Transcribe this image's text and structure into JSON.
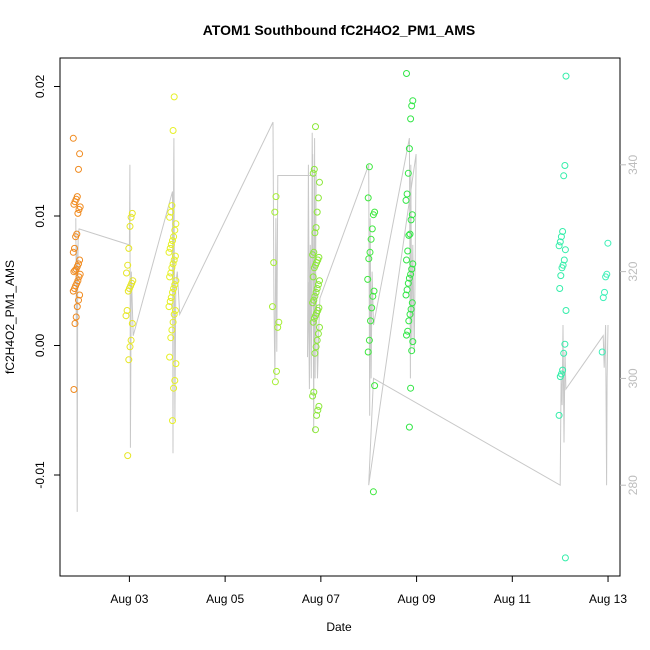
{
  "chart_data": {
    "type": "scatter",
    "title": "ATOM1 Southbound fC2H4O2_PM1_AMS",
    "xlabel": "Date",
    "ylabel": "fC2H4O2_PM1_AMS",
    "x_unit": "days since Aug 01",
    "xlim": [
      1.55,
      13.25
    ],
    "ylim": [
      -0.0178,
      0.0222
    ],
    "y2lim": [
      263,
      360
    ],
    "x_ticks": [
      {
        "value": 3,
        "label": "Aug 03"
      },
      {
        "value": 5,
        "label": "Aug 05"
      },
      {
        "value": 7,
        "label": "Aug 07"
      },
      {
        "value": 9,
        "label": "Aug 09"
      },
      {
        "value": 11,
        "label": "Aug 11"
      },
      {
        "value": 13,
        "label": "Aug 13"
      }
    ],
    "y_ticks": [
      {
        "value": 0.02,
        "label": "0.02"
      },
      {
        "value": 0.01,
        "label": "0.01"
      },
      {
        "value": 0.0,
        "label": "0.00"
      },
      {
        "value": -0.01,
        "label": "-0.01"
      }
    ],
    "y2_ticks": [
      {
        "value": 280,
        "label": "280"
      },
      {
        "value": 300,
        "label": "300"
      },
      {
        "value": 320,
        "label": "320"
      },
      {
        "value": 340,
        "label": "340"
      }
    ],
    "clusters": [
      {
        "x": 1.9,
        "color": "#f08a1e",
        "points": [
          0.016,
          0.0148,
          0.0136,
          0.0115,
          0.0113,
          0.0111,
          0.0109,
          0.0107,
          0.0105,
          0.0102,
          0.0086,
          0.0084,
          0.0075,
          0.0072,
          0.0066,
          0.0063,
          0.0061,
          0.0059,
          0.0058,
          0.0057,
          0.0055,
          0.0053,
          0.005,
          0.0048,
          0.0046,
          0.0044,
          0.0042,
          0.0039,
          0.0035,
          0.003,
          0.0022,
          0.0017,
          -0.0034
        ]
      },
      {
        "x": 3.0,
        "color": "#e6e626",
        "points": [
          0.0102,
          0.0099,
          0.0092,
          0.0075,
          0.0062,
          0.0056,
          0.005,
          0.0048,
          0.0046,
          0.0044,
          0.0042,
          0.0027,
          0.0023,
          0.0017,
          0.0004,
          -0.0001,
          -0.0011,
          -0.0085
        ]
      },
      {
        "x": 3.9,
        "color": "#e6f026",
        "points": [
          0.0192,
          0.0166,
          0.0108,
          0.0103,
          0.0099,
          0.0094,
          0.0089,
          0.0084,
          0.0081,
          0.0078,
          0.0075,
          0.0072,
          0.0069,
          0.0066,
          0.0063,
          0.006,
          0.0056,
          0.0053,
          0.005,
          0.0047,
          0.0044,
          0.0041,
          0.0037,
          0.0034,
          0.003,
          0.0027,
          0.0024,
          0.0018,
          0.0012,
          0.0006,
          -0.0009,
          -0.0014,
          -0.0027,
          -0.0033,
          -0.0058
        ]
      },
      {
        "x": 6.05,
        "color": "#a6ee36",
        "points": [
          0.0115,
          0.0103,
          0.0064,
          0.003,
          0.0018,
          0.0014,
          -0.002,
          -0.0028
        ]
      },
      {
        "x": 6.9,
        "color": "#8ce83a",
        "points": [
          0.0169,
          0.0136,
          0.0133,
          0.0126,
          0.0114,
          0.0103,
          0.0091,
          0.0087,
          0.0072,
          0.007,
          0.0068,
          0.0066,
          0.0064,
          0.0062,
          0.006,
          0.0053,
          0.005,
          0.0047,
          0.0044,
          0.0041,
          0.0038,
          0.0035,
          0.0033,
          0.0029,
          0.0027,
          0.0025,
          0.0023,
          0.0021,
          0.0018,
          0.0014,
          0.0009,
          0.0004,
          -0.0001,
          -0.0006,
          -0.0036,
          -0.0039,
          -0.0047,
          -0.005,
          -0.0054,
          -0.0065
        ]
      },
      {
        "x": 8.05,
        "color": "#3ee83e",
        "points": [
          0.0138,
          0.0114,
          0.0103,
          0.0101,
          0.009,
          0.0082,
          0.0072,
          0.0067,
          0.0051,
          0.0042,
          0.0038,
          0.0029,
          0.0019,
          0.0004,
          -0.0005,
          -0.0031,
          -0.0113
        ]
      },
      {
        "x": 8.85,
        "color": "#32e646",
        "points": [
          0.021,
          0.0189,
          0.0185,
          0.0175,
          0.0152,
          0.0133,
          0.0117,
          0.0112,
          0.0101,
          0.0097,
          0.0086,
          0.0085,
          0.0073,
          0.0066,
          0.0063,
          0.0059,
          0.0055,
          0.0052,
          0.0048,
          0.0043,
          0.0039,
          0.0033,
          0.0028,
          0.0024,
          0.0019,
          0.0011,
          0.0008,
          0.0003,
          -0.0004,
          -0.0033,
          -0.0063
        ]
      },
      {
        "x": 12.05,
        "color": "#34eeaa",
        "points": [
          0.0208,
          0.0139,
          0.0131,
          0.0088,
          0.0084,
          0.008,
          0.0077,
          0.0074,
          0.0066,
          0.0062,
          0.006,
          0.0054,
          0.0044,
          0.0027,
          0.0001,
          -0.0006,
          -0.0019,
          -0.0022,
          -0.0024,
          -0.0054,
          -0.0164
        ]
      },
      {
        "x": 12.95,
        "color": "#3ef0b8",
        "points": [
          0.0079,
          0.0055,
          0.0053,
          0.0041,
          0.0037,
          -0.0005
        ]
      }
    ],
    "gray_line": {
      "color": "#c8c8c8",
      "axis": "right",
      "x": [
        1.88,
        1.89,
        1.9,
        1.91,
        1.92,
        1.93,
        1.95,
        3.0,
        3.01,
        3.02,
        3.04,
        3.08,
        3.9,
        3.91,
        3.92,
        3.93,
        3.95,
        3.97,
        4.0,
        4.05,
        6.0,
        6.02,
        6.04,
        6.06,
        6.08,
        6.1,
        6.9,
        6.88,
        6.87,
        6.85,
        6.83,
        6.8,
        6.78,
        6.76,
        6.74,
        6.72,
        6.74,
        6.76,
        6.78,
        6.8,
        6.82,
        6.85,
        6.88,
        6.9,
        6.93,
        6.96,
        6.98,
        8.0,
        8.02,
        8.03,
        8.05,
        8.07,
        8.1,
        8.85,
        8.87,
        8.88,
        8.9,
        8.92,
        8.95,
        8.97,
        8.99,
        8.0,
        8.05,
        8.1,
        12.0,
        12.02,
        12.04,
        12.06,
        12.08,
        12.1,
        12.12,
        12.9,
        12.92,
        12.95,
        12.97,
        12.98,
        13.0
      ],
      "y": [
        330,
        310,
        325,
        275,
        318,
        327,
        328,
        325,
        340,
        287,
        320,
        308,
        335,
        286,
        330,
        345,
        292,
        318,
        320,
        312,
        348,
        315,
        300,
        330,
        305,
        338,
        338,
        300,
        345,
        290,
        342,
        302,
        322,
        298,
        318,
        304,
        340,
        306,
        325,
        300,
        346,
        310,
        322,
        318,
        300,
        310,
        315,
        340,
        293,
        330,
        300,
        320,
        310,
        345,
        300,
        340,
        306,
        325,
        305,
        320,
        342,
        280,
        290,
        300,
        280,
        300,
        295,
        310,
        288,
        305,
        298,
        308,
        302,
        310,
        280,
        300,
        310
      ]
    }
  }
}
